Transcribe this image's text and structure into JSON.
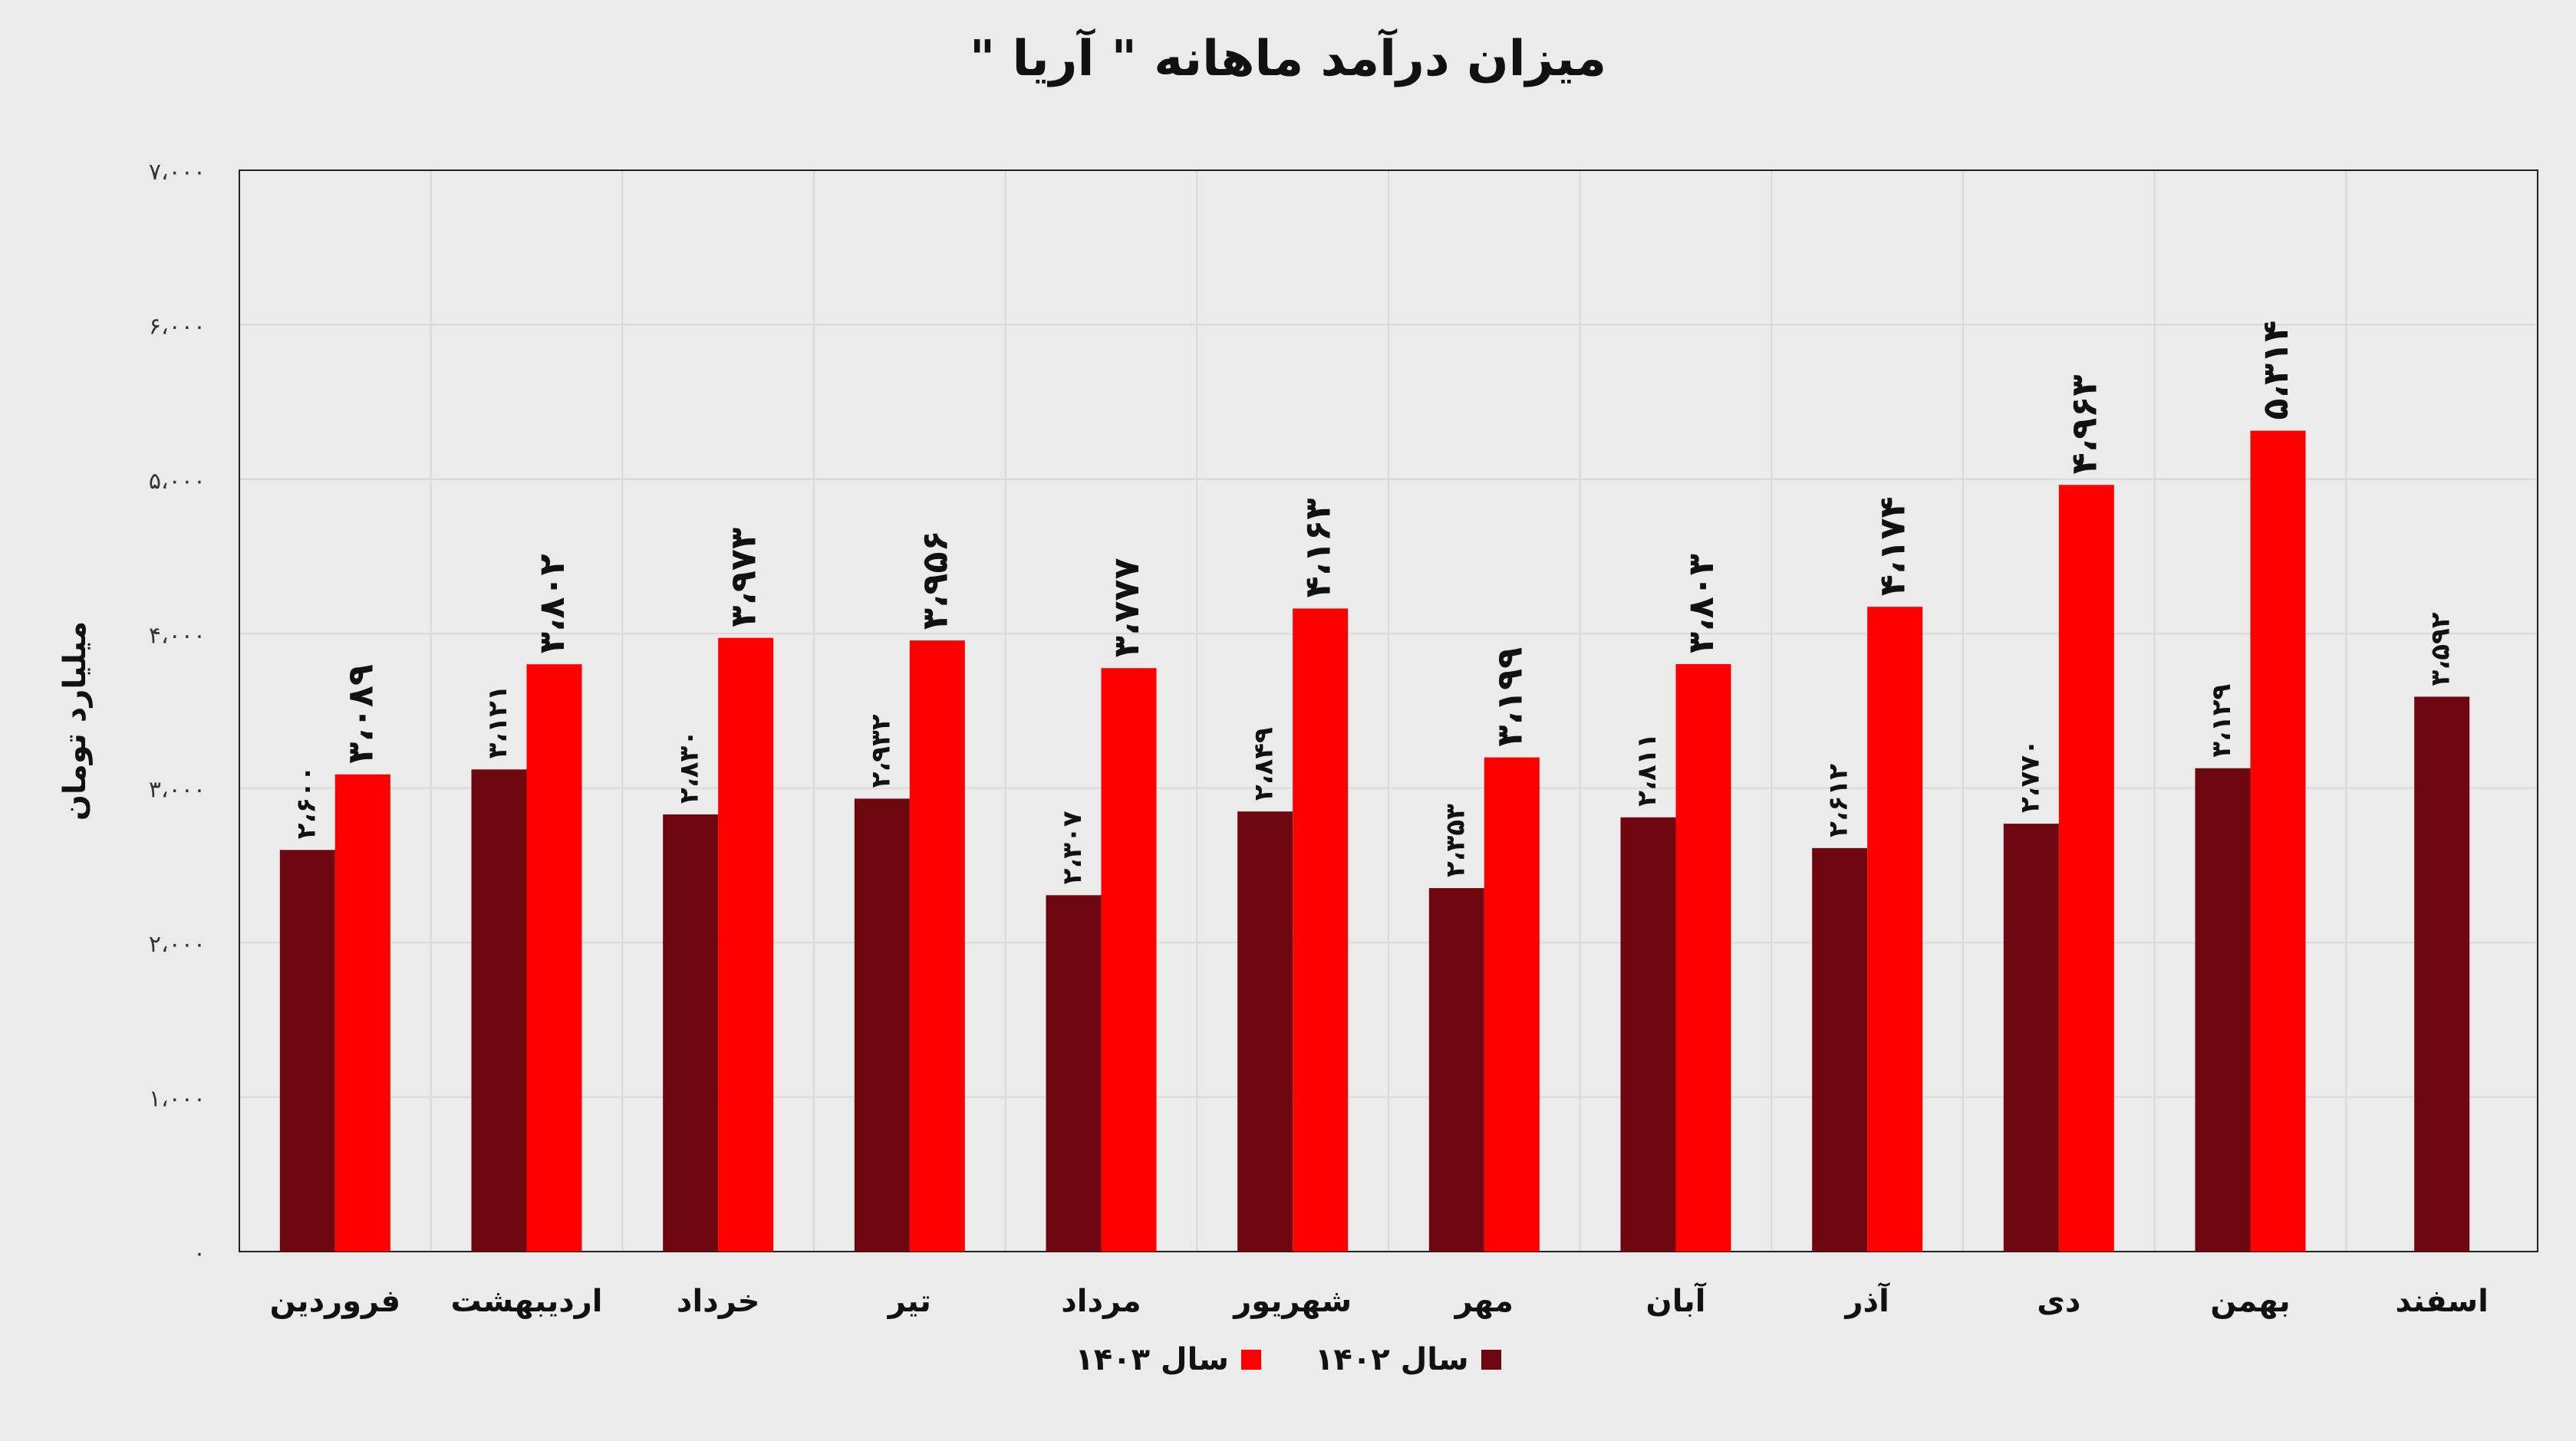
{
  "chart_data": {
    "type": "bar",
    "title": "میزان درآمد ماهانه \" آریا \"",
    "ylabel": "میلیارد تومان",
    "xlabel": "",
    "ylim": [
      0,
      7000
    ],
    "yticks": [
      0,
      1000,
      2000,
      3000,
      4000,
      5000,
      6000,
      7000
    ],
    "ytick_labels": [
      "۰",
      "۱،۰۰۰",
      "۲،۰۰۰",
      "۳،۰۰۰",
      "۴،۰۰۰",
      "۵،۰۰۰",
      "۶،۰۰۰",
      "۷،۰۰۰"
    ],
    "grid": true,
    "legend_position": "bottom",
    "categories": [
      "فروردین",
      "اردیبهشت",
      "خرداد",
      "تیر",
      "مرداد",
      "شهریور",
      "مهر",
      "آبان",
      "آذر",
      "دی",
      "بهمن",
      "اسفند"
    ],
    "series": [
      {
        "name": "سال ۱۴۰۲",
        "color": "#6e0710",
        "values": [
          2600,
          3121,
          2830,
          2932,
          2307,
          2849,
          2353,
          2811,
          2612,
          2770,
          3129,
          3592
        ],
        "labels": [
          "۲،۶۰۰",
          "۳،۱۲۱",
          "۲،۸۳۰",
          "۲،۹۳۲",
          "۲،۳۰۷",
          "۲،۸۴۹",
          "۲،۳۵۳",
          "۲،۸۱۱",
          "۲،۶۱۲",
          "۲،۷۷۰",
          "۳،۱۲۹",
          "۳،۵۹۲"
        ]
      },
      {
        "name": "سال ۱۴۰۳",
        "color": "#ff0000",
        "values": [
          3089,
          3802,
          3973,
          3956,
          3777,
          4163,
          3199,
          3803,
          4174,
          4963,
          5314,
          null
        ],
        "labels": [
          "۳،۰۸۹",
          "۳،۸۰۲",
          "۳،۹۷۳",
          "۳،۹۵۶",
          "۳،۷۷۷",
          "۴،۱۶۳",
          "۳،۱۹۹",
          "۳،۸۰۳",
          "۴،۱۷۴",
          "۴،۹۶۳",
          "۵،۳۱۴",
          null
        ]
      }
    ]
  }
}
